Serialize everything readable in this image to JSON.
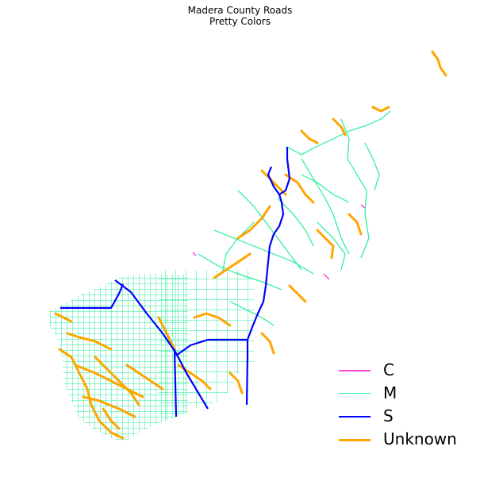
{
  "title": {
    "line1": "Madera County Roads",
    "line2": "Pretty Colors"
  },
  "legend": [
    {
      "label": "C",
      "color": "#ff44dd"
    },
    {
      "label": "M",
      "color": "#22ee99"
    },
    {
      "label": "S",
      "color": "#0000ff"
    },
    {
      "label": "Unknown",
      "color": "#ffa500"
    }
  ],
  "colors": {
    "C": "#ff44dd",
    "M": "#22ee99",
    "S": "#0000ff",
    "Unknown": "#ffa500",
    "background": "#ffffff"
  }
}
